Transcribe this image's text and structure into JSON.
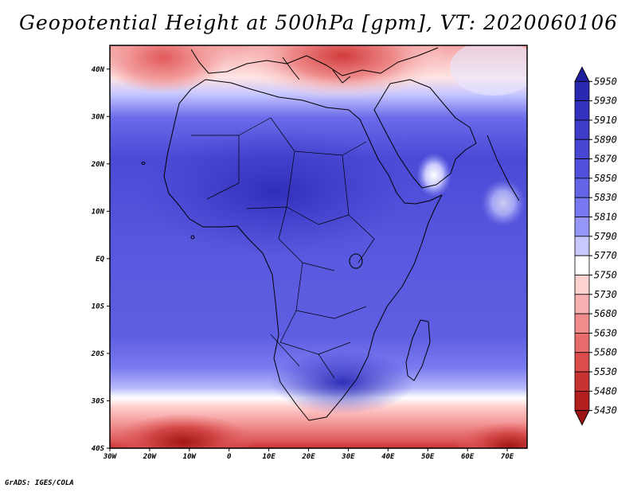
{
  "title": "Geopotential Height at 500hPa [gpm], VT: 2020060106",
  "footer": "GrADS: IGES/COLA",
  "map": {
    "variable": "Geopotential Height at 500hPa",
    "units": "gpm",
    "valid_time": "2020060106",
    "lon_range": [
      -30,
      75
    ],
    "lat_range": [
      -40,
      45
    ],
    "lat_labels": [
      "40N",
      "30N",
      "20N",
      "10N",
      "EQ",
      "10S",
      "20S",
      "30S",
      "40S"
    ],
    "lon_labels": [
      "30W",
      "20W",
      "10W",
      "0",
      "10E",
      "20E",
      "30E",
      "40E",
      "50E",
      "60E",
      "70E"
    ]
  },
  "colorbar": {
    "levels": [
      "5950",
      "5930",
      "5910",
      "5890",
      "5870",
      "5850",
      "5830",
      "5810",
      "5790",
      "5770",
      "5750",
      "5730",
      "5680",
      "5630",
      "5580",
      "5530",
      "5480",
      "5430"
    ],
    "colors": [
      "#1e1ea0",
      "#2828b0",
      "#3232be",
      "#3c3cc8",
      "#4646d2",
      "#5050dc",
      "#6464e6",
      "#7878f0",
      "#9696f8",
      "#c8c8ff",
      "#ffffff",
      "#ffd2d2",
      "#f8b0b0",
      "#f08c8c",
      "#e86c6c",
      "#dc4c4c",
      "#c83232",
      "#b41e1e",
      "#9c1414"
    ]
  }
}
